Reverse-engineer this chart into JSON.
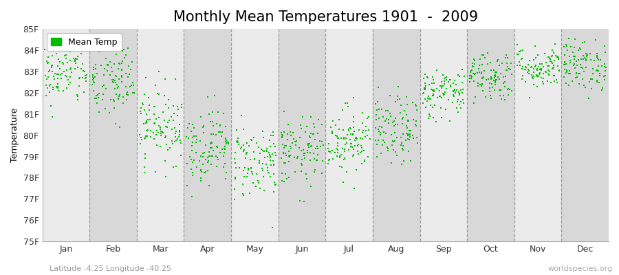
{
  "title": "Monthly Mean Temperatures 1901  -  2009",
  "ylabel": "Temperature",
  "xlabel_bottom": "Latitude -4.25 Longitude -40.25",
  "watermark": "worldspecies.org",
  "ylim": [
    75,
    85
  ],
  "yticks": [
    75,
    76,
    77,
    78,
    79,
    80,
    81,
    82,
    83,
    84,
    85
  ],
  "ytick_labels": [
    "75F",
    "76F",
    "77F",
    "78F",
    "79F",
    "80F",
    "81F",
    "82F",
    "83F",
    "84F",
    "85F"
  ],
  "months": [
    "Jan",
    "Feb",
    "Mar",
    "Apr",
    "May",
    "Jun",
    "Jul",
    "Aug",
    "Sep",
    "Oct",
    "Nov",
    "Dec"
  ],
  "dot_color": "#00bb00",
  "bg_color_light": "#ebebeb",
  "bg_color_dark": "#d8d8d8",
  "legend_color": "#00bb00",
  "n_years": 109,
  "month_means": [
    83.0,
    82.5,
    80.5,
    79.5,
    78.8,
    79.2,
    79.8,
    80.2,
    82.0,
    82.8,
    83.2,
    83.3
  ],
  "month_stds": [
    0.8,
    1.0,
    0.9,
    0.9,
    0.9,
    0.8,
    0.8,
    0.8,
    0.6,
    0.6,
    0.5,
    0.6
  ],
  "random_seed": 42,
  "title_fontsize": 15,
  "axis_fontsize": 9,
  "tick_fontsize": 9,
  "dot_size": 3,
  "dashed_line_color": "#999999"
}
